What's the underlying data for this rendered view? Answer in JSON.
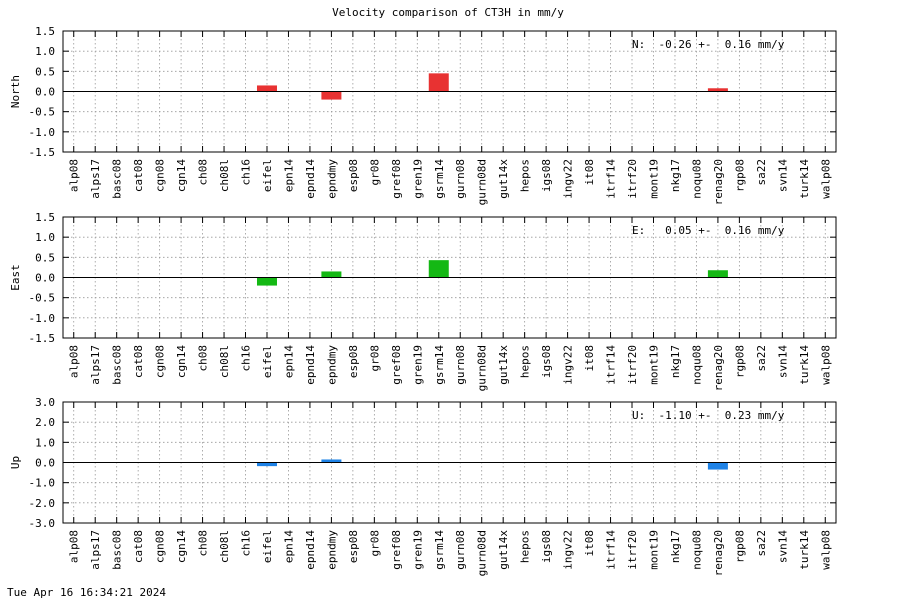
{
  "title": "Velocity comparison of CT3H in mm/y",
  "footer": "Tue Apr 16 16:34:21 2024",
  "chart_data": [
    {
      "type": "bar",
      "ylabel": "North",
      "annotation": "N:  -0.26 +-  0.16 mm/y",
      "ylim": [
        -1.5,
        1.5
      ],
      "yticks": [
        1.5,
        1.0,
        0.5,
        0.0,
        -0.5,
        -1.0,
        -1.5
      ],
      "ytick_labels": [
        "1.5",
        "1.0",
        "0.5",
        "0.0",
        "-0.5",
        "-1.0",
        "-1.5"
      ],
      "color": "#e83232",
      "grid": true,
      "categories": [
        "alp08",
        "alps17",
        "basc08",
        "cat08",
        "cgn08",
        "cgn14",
        "ch08",
        "ch08l",
        "ch16",
        "eifel",
        "epn14",
        "epnd14",
        "epndmy",
        "esp08",
        "gr08",
        "gref08",
        "gren19",
        "gsrm14",
        "gurn08",
        "gurn08d",
        "gut14x",
        "hepos",
        "igs08",
        "ingv22",
        "it08",
        "itrf14",
        "itrf20",
        "mont19",
        "nkg17",
        "noqu08",
        "renag20",
        "rgp08",
        "sa22",
        "svn14",
        "turk14",
        "walp08"
      ],
      "values": [
        0,
        0,
        0,
        0,
        0,
        0,
        0,
        0,
        0,
        0.15,
        0,
        0,
        -0.2,
        0,
        0,
        0,
        0,
        0.45,
        0,
        0,
        0,
        0,
        0,
        0,
        0,
        0,
        0,
        0,
        0,
        0,
        0.08,
        0,
        0,
        0,
        0,
        0
      ]
    },
    {
      "type": "bar",
      "ylabel": "East",
      "annotation": "E:   0.05 +-  0.16 mm/y",
      "ylim": [
        -1.5,
        1.5
      ],
      "yticks": [
        1.5,
        1.0,
        0.5,
        0.0,
        -0.5,
        -1.0,
        -1.5
      ],
      "ytick_labels": [
        "1.5",
        "1.0",
        "0.5",
        "0.0",
        "-0.5",
        "-1.0",
        "-1.5"
      ],
      "color": "#14b814",
      "grid": true,
      "categories": [
        "alp08",
        "alps17",
        "basc08",
        "cat08",
        "cgn08",
        "cgn14",
        "ch08",
        "ch08l",
        "ch16",
        "eifel",
        "epn14",
        "epnd14",
        "epndmy",
        "esp08",
        "gr08",
        "gref08",
        "gren19",
        "gsrm14",
        "gurn08",
        "gurn08d",
        "gut14x",
        "hepos",
        "igs08",
        "ingv22",
        "it08",
        "itrf14",
        "itrf20",
        "mont19",
        "nkg17",
        "noqu08",
        "renag20",
        "rgp08",
        "sa22",
        "svn14",
        "turk14",
        "walp08"
      ],
      "values": [
        0,
        0,
        0,
        0,
        0,
        0,
        0,
        0,
        0,
        -0.2,
        0,
        0,
        0.15,
        0,
        0,
        0,
        0,
        0.43,
        0,
        0,
        0,
        0,
        0,
        0,
        0,
        0,
        0,
        0,
        0,
        0,
        0.18,
        0,
        0,
        0,
        0,
        0
      ]
    },
    {
      "type": "bar",
      "ylabel": "Up",
      "annotation": "U:  -1.10 +-  0.23 mm/y",
      "ylim": [
        -3.0,
        3.0
      ],
      "yticks": [
        3.0,
        2.0,
        1.0,
        0.0,
        -1.0,
        -2.0,
        -3.0
      ],
      "ytick_labels": [
        "3.0",
        "2.0",
        "1.0",
        "0.0",
        "-1.0",
        "-2.0",
        "-3.0"
      ],
      "color": "#1e82e6",
      "grid": true,
      "categories": [
        "alp08",
        "alps17",
        "basc08",
        "cat08",
        "cgn08",
        "cgn14",
        "ch08",
        "ch08l",
        "ch16",
        "eifel",
        "epn14",
        "epnd14",
        "epndmy",
        "esp08",
        "gr08",
        "gref08",
        "gren19",
        "gsrm14",
        "gurn08",
        "gurn08d",
        "gut14x",
        "hepos",
        "igs08",
        "ingv22",
        "it08",
        "itrf14",
        "itrf20",
        "mont19",
        "nkg17",
        "noqu08",
        "renag20",
        "rgp08",
        "sa22",
        "svn14",
        "turk14",
        "walp08"
      ],
      "values": [
        0,
        0,
        0,
        0,
        0,
        0,
        0,
        0,
        0,
        -0.18,
        0,
        0,
        0.15,
        0,
        0,
        0,
        0,
        0,
        0,
        0,
        0,
        0,
        0,
        0,
        0,
        0,
        0,
        0,
        0,
        0,
        -0.35,
        0,
        0,
        0,
        0,
        0
      ]
    }
  ]
}
